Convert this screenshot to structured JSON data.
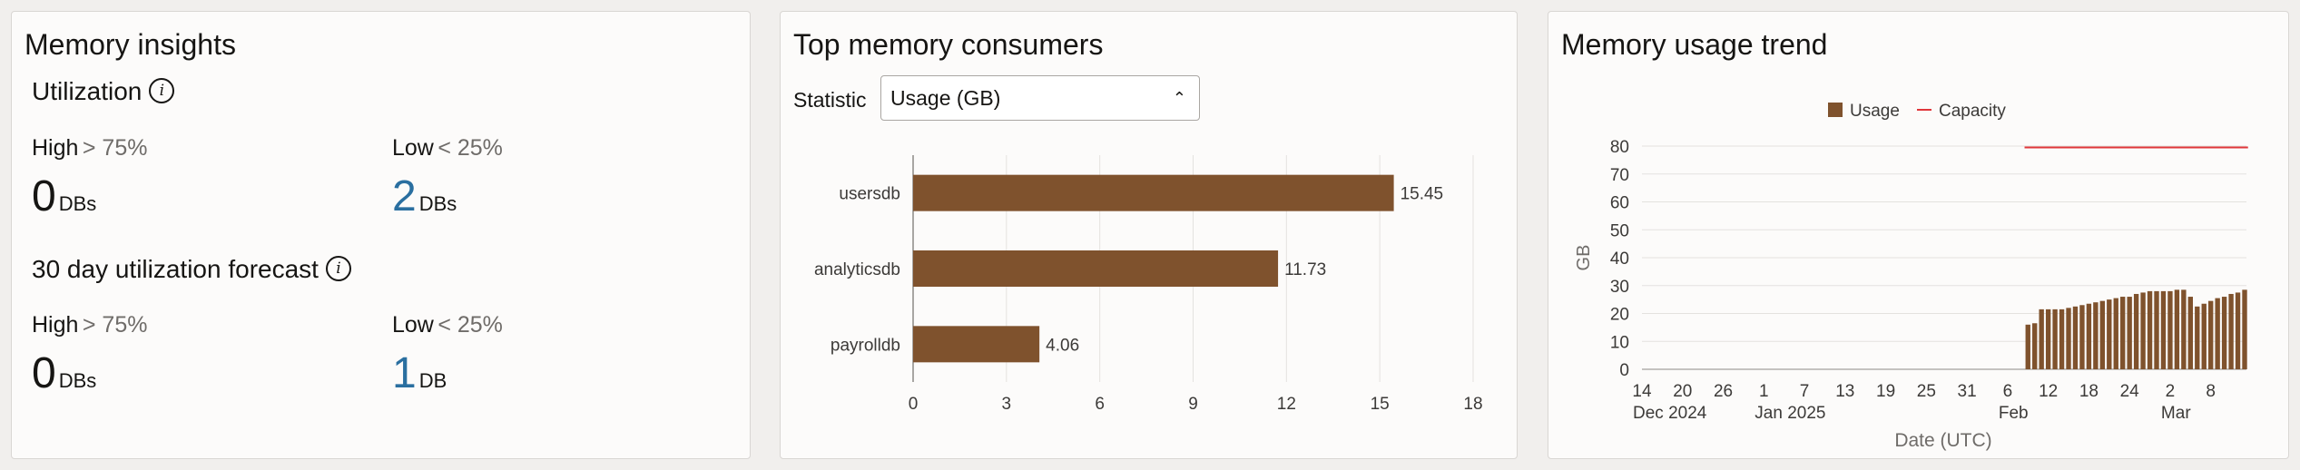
{
  "insights": {
    "title": "Memory insights",
    "utilization": {
      "title": "Utilization",
      "high_label": "High",
      "high_threshold": "> 75%",
      "low_label": "Low",
      "low_threshold": "< 25%",
      "high_count": "0",
      "high_unit": "DBs",
      "low_count": "2",
      "low_unit": "DBs"
    },
    "forecast": {
      "title": "30 day utilization forecast",
      "high_label": "High",
      "high_threshold": "> 75%",
      "low_label": "Low",
      "low_threshold": "< 25%",
      "high_count": "0",
      "high_unit": "DBs",
      "low_count": "1",
      "low_unit": "DB"
    },
    "info_icon": "info-icon",
    "accent_color": "#2a6fa0"
  },
  "consumers": {
    "title": "Top memory consumers",
    "statistic_label": "Statistic",
    "statistic_value": "Usage (GB)",
    "bar_color": "#7f522d"
  },
  "trend": {
    "title": "Memory usage trend",
    "usage_color": "#7f522d",
    "capacity_color": "#e0363a"
  },
  "chart_data": [
    {
      "type": "bar",
      "orientation": "horizontal",
      "categories": [
        "usersdb",
        "analyticsdb",
        "payrolldb"
      ],
      "values": [
        15.45,
        11.73,
        4.06
      ],
      "data_labels": [
        "15.45",
        "11.73",
        "4.06"
      ],
      "xlim": [
        0,
        18
      ],
      "xticks": [
        "0",
        "3",
        "6",
        "9",
        "12",
        "15",
        "18"
      ],
      "grid": true
    },
    {
      "type": "bar",
      "xlabel": "Date (UTC)",
      "ylabel": "GB",
      "ylim": [
        0,
        80
      ],
      "yticks": [
        "0",
        "10",
        "20",
        "30",
        "40",
        "50",
        "60",
        "70",
        "80"
      ],
      "xticks": [
        {
          "day": "14",
          "month": "Dec 2024"
        },
        {
          "day": "20",
          "month": ""
        },
        {
          "day": "26",
          "month": ""
        },
        {
          "day": "1",
          "month": "Jan 2025"
        },
        {
          "day": "7",
          "month": ""
        },
        {
          "day": "13",
          "month": ""
        },
        {
          "day": "19",
          "month": ""
        },
        {
          "day": "25",
          "month": ""
        },
        {
          "day": "31",
          "month": ""
        },
        {
          "day": "6",
          "month": "Feb"
        },
        {
          "day": "12",
          "month": ""
        },
        {
          "day": "18",
          "month": ""
        },
        {
          "day": "24",
          "month": ""
        },
        {
          "day": "2",
          "month": "Mar"
        },
        {
          "day": "8",
          "month": ""
        }
      ],
      "legend": [
        "Usage",
        "Capacity"
      ],
      "legend_position": "top",
      "grid": true,
      "start_date": "2024-12-14",
      "x": [
        "2025-02-09",
        "2025-02-10",
        "2025-02-11",
        "2025-02-12",
        "2025-02-13",
        "2025-02-14",
        "2025-02-15",
        "2025-02-16",
        "2025-02-17",
        "2025-02-18",
        "2025-02-19",
        "2025-02-20",
        "2025-02-21",
        "2025-02-22",
        "2025-02-23",
        "2025-02-24",
        "2025-02-25",
        "2025-02-26",
        "2025-02-27",
        "2025-02-28",
        "2025-03-01",
        "2025-03-02",
        "2025-03-03",
        "2025-03-04",
        "2025-03-05",
        "2025-03-06",
        "2025-03-07",
        "2025-03-08",
        "2025-03-09",
        "2025-03-10",
        "2025-03-11",
        "2025-03-12",
        "2025-03-13"
      ],
      "series": [
        {
          "name": "Usage",
          "values": [
            16,
            16.5,
            21.5,
            21.5,
            21.5,
            21.5,
            22,
            22.5,
            23,
            23.5,
            24,
            24.5,
            25,
            25.5,
            26,
            26,
            27,
            27.5,
            28,
            28,
            28,
            28,
            28.5,
            28.5,
            26,
            22.5,
            23.5,
            24.5,
            25.5,
            26,
            27,
            27.5,
            28.5
          ]
        },
        {
          "name": "Capacity",
          "values": [
            79.5,
            79.5,
            79.5,
            79.5,
            79.5,
            79.5,
            79.5,
            79.5,
            79.5,
            79.5,
            79.5,
            79.5,
            79.5,
            79.5,
            79.5,
            79.5,
            79.5,
            79.5,
            79.5,
            79.5,
            79.5,
            79.5,
            79.5,
            79.5,
            79.5,
            79.5,
            79.5,
            79.5,
            79.5,
            79.5,
            79.5,
            79.5,
            79.5
          ]
        }
      ]
    }
  ]
}
